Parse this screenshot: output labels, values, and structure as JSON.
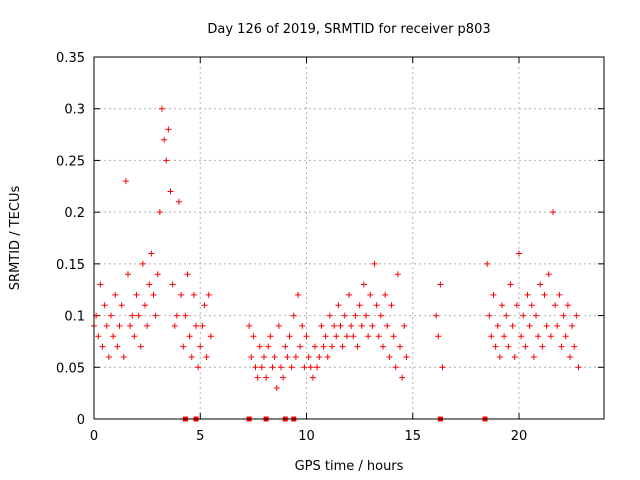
{
  "chart_data": {
    "type": "scatter",
    "title": "Day 126 of 2019, SRMTID for receiver p803",
    "xlabel": "GPS time / hours",
    "ylabel": "SRMTID / TECUs",
    "xlim": [
      0,
      24
    ],
    "ylim": [
      0,
      0.35
    ],
    "grid": true,
    "marker": "+",
    "color": "#ff0000",
    "x_ticks": [
      0,
      5,
      10,
      15,
      20
    ],
    "x_tick_labels": [
      "0",
      "5",
      "10",
      "15",
      "20"
    ],
    "y_ticks": [
      0,
      0.05,
      0.1,
      0.15,
      0.2,
      0.25,
      0.3,
      0.35
    ],
    "y_tick_labels": [
      "0",
      "0.05",
      "0.1",
      "0.15",
      "0.2",
      "0.25",
      "0.3",
      "0.35"
    ],
    "zero_markers_x": [
      4.3,
      4.8,
      7.3,
      8.1,
      9.0,
      9.4,
      16.3,
      18.4
    ],
    "series": [
      {
        "name": "SRMTID",
        "x": [
          0.0,
          0.1,
          0.2,
          0.3,
          0.4,
          0.5,
          0.6,
          0.7,
          0.8,
          0.9,
          1.0,
          1.1,
          1.2,
          1.3,
          1.4,
          1.5,
          1.6,
          1.7,
          1.8,
          1.9,
          2.0,
          2.1,
          2.2,
          2.3,
          2.4,
          2.5,
          2.6,
          2.7,
          2.8,
          2.9,
          3.0,
          3.1,
          3.2,
          3.3,
          3.4,
          3.5,
          3.6,
          3.7,
          3.8,
          3.9,
          4.0,
          4.1,
          4.2,
          4.3,
          4.4,
          4.5,
          4.6,
          4.7,
          4.8,
          4.9,
          5.0,
          5.1,
          5.2,
          5.3,
          5.4,
          5.5,
          7.3,
          7.4,
          7.5,
          7.6,
          7.7,
          7.8,
          7.9,
          8.0,
          8.1,
          8.2,
          8.3,
          8.4,
          8.5,
          8.6,
          8.7,
          8.8,
          8.9,
          9.0,
          9.1,
          9.2,
          9.3,
          9.4,
          9.5,
          9.6,
          9.7,
          9.8,
          9.9,
          10.0,
          10.1,
          10.2,
          10.3,
          10.4,
          10.5,
          10.6,
          10.7,
          10.8,
          10.9,
          11.0,
          11.1,
          11.2,
          11.3,
          11.4,
          11.5,
          11.6,
          11.7,
          11.8,
          11.9,
          12.0,
          12.1,
          12.2,
          12.3,
          12.4,
          12.5,
          12.6,
          12.7,
          12.8,
          12.9,
          13.0,
          13.1,
          13.2,
          13.3,
          13.4,
          13.5,
          13.6,
          13.7,
          13.8,
          13.9,
          14.0,
          14.1,
          14.2,
          14.3,
          14.4,
          14.5,
          14.6,
          14.7,
          16.1,
          16.2,
          16.3,
          16.4,
          18.5,
          18.6,
          18.7,
          18.8,
          18.9,
          19.0,
          19.1,
          19.2,
          19.3,
          19.4,
          19.5,
          19.6,
          19.7,
          19.8,
          19.9,
          20.0,
          20.1,
          20.2,
          20.3,
          20.4,
          20.5,
          20.6,
          20.7,
          20.8,
          20.9,
          21.0,
          21.1,
          21.2,
          21.3,
          21.4,
          21.5,
          21.6,
          21.7,
          21.8,
          21.9,
          22.0,
          22.1,
          22.2,
          22.3,
          22.4,
          22.5,
          22.6,
          22.7,
          22.8
        ],
        "y": [
          0.09,
          0.1,
          0.08,
          0.13,
          0.07,
          0.11,
          0.09,
          0.06,
          0.1,
          0.08,
          0.12,
          0.07,
          0.09,
          0.11,
          0.06,
          0.23,
          0.14,
          0.09,
          0.1,
          0.08,
          0.12,
          0.1,
          0.07,
          0.15,
          0.11,
          0.09,
          0.13,
          0.16,
          0.12,
          0.1,
          0.14,
          0.2,
          0.3,
          0.27,
          0.25,
          0.28,
          0.22,
          0.13,
          0.09,
          0.1,
          0.21,
          0.12,
          0.07,
          0.1,
          0.14,
          0.08,
          0.06,
          0.12,
          0.09,
          0.05,
          0.07,
          0.09,
          0.11,
          0.06,
          0.12,
          0.08,
          0.09,
          0.06,
          0.08,
          0.05,
          0.04,
          0.07,
          0.05,
          0.06,
          0.04,
          0.07,
          0.08,
          0.05,
          0.06,
          0.03,
          0.09,
          0.05,
          0.04,
          0.07,
          0.06,
          0.08,
          0.05,
          0.1,
          0.06,
          0.12,
          0.07,
          0.09,
          0.05,
          0.08,
          0.06,
          0.05,
          0.04,
          0.07,
          0.05,
          0.06,
          0.09,
          0.07,
          0.08,
          0.06,
          0.1,
          0.07,
          0.09,
          0.08,
          0.11,
          0.09,
          0.07,
          0.1,
          0.08,
          0.12,
          0.09,
          0.08,
          0.1,
          0.07,
          0.11,
          0.09,
          0.13,
          0.1,
          0.08,
          0.12,
          0.09,
          0.15,
          0.11,
          0.08,
          0.1,
          0.07,
          0.12,
          0.09,
          0.06,
          0.11,
          0.08,
          0.05,
          0.14,
          0.07,
          0.04,
          0.09,
          0.06,
          0.1,
          0.08,
          0.13,
          0.05,
          0.15,
          0.1,
          0.08,
          0.12,
          0.07,
          0.09,
          0.06,
          0.11,
          0.08,
          0.1,
          0.07,
          0.13,
          0.09,
          0.06,
          0.11,
          0.16,
          0.08,
          0.1,
          0.07,
          0.12,
          0.09,
          0.11,
          0.06,
          0.1,
          0.08,
          0.13,
          0.07,
          0.12,
          0.09,
          0.14,
          0.08,
          0.2,
          0.11,
          0.09,
          0.12,
          0.07,
          0.1,
          0.08,
          0.11,
          0.06,
          0.09,
          0.07,
          0.1,
          0.05
        ]
      }
    ]
  }
}
